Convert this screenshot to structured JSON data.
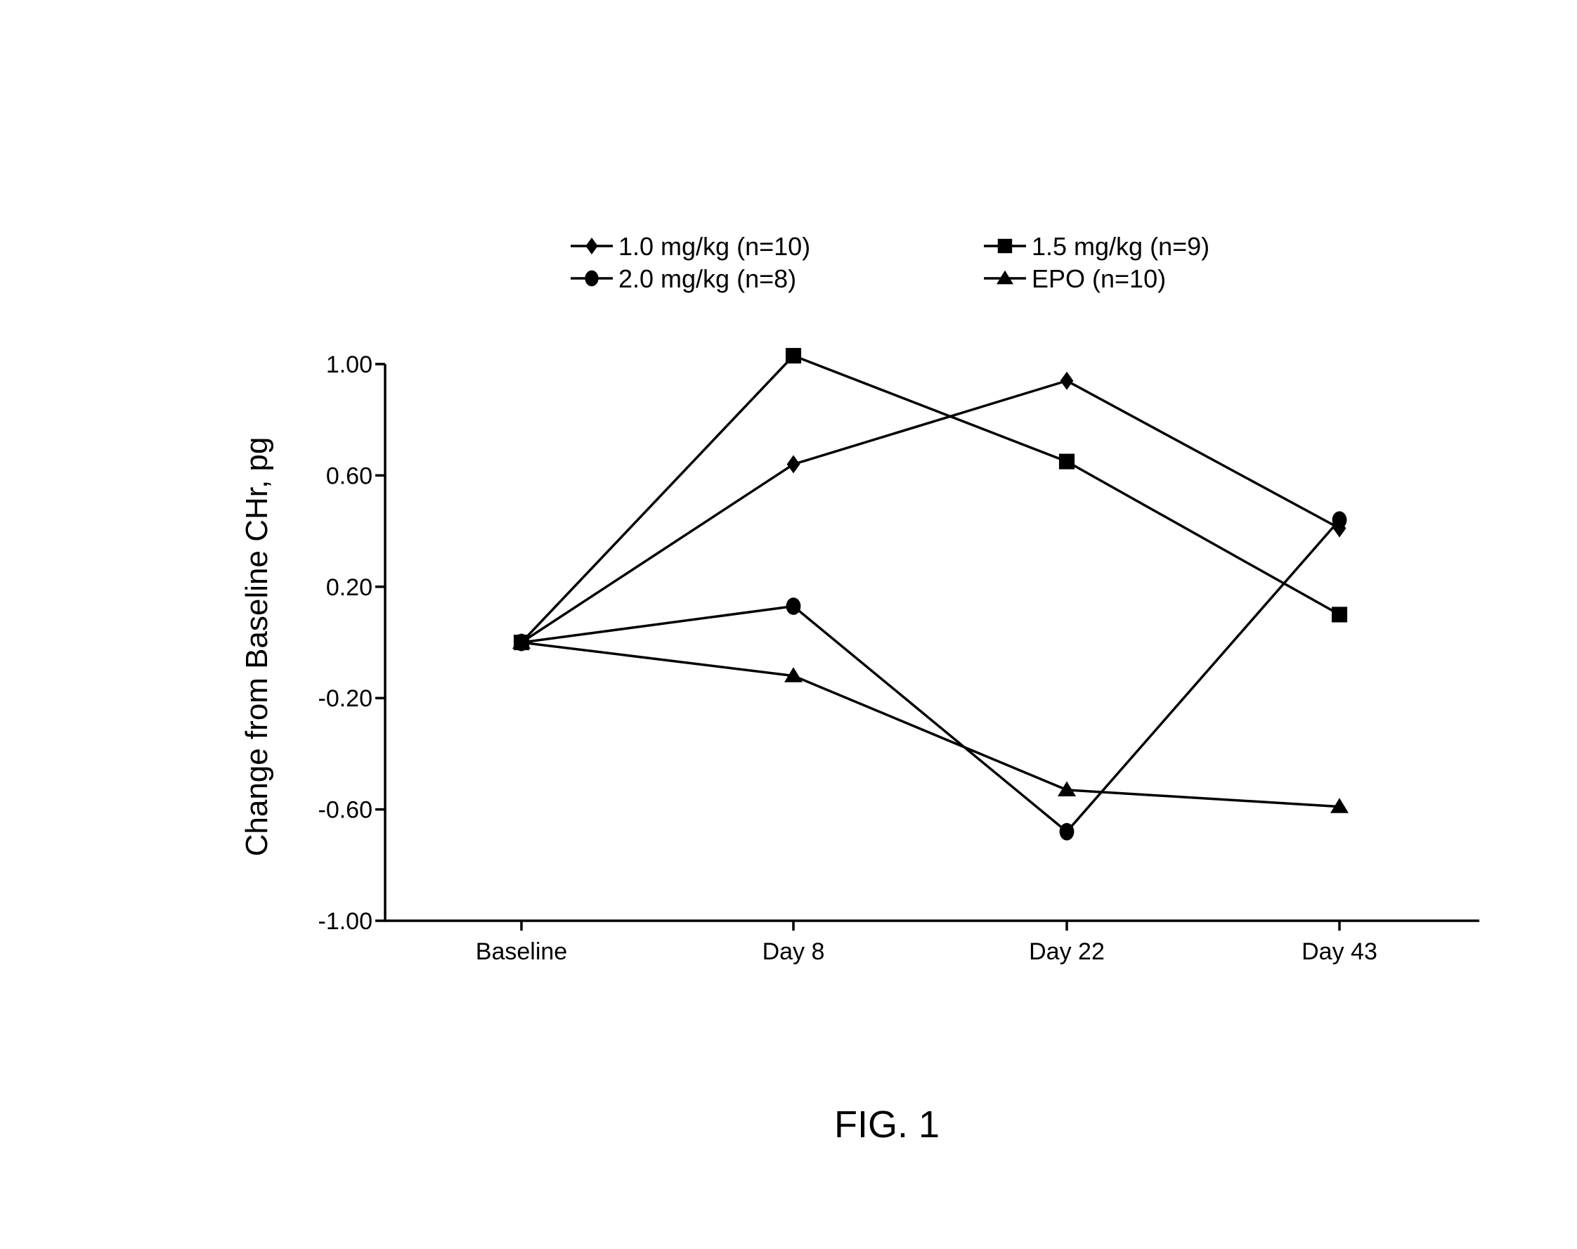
{
  "chart_data": {
    "type": "line",
    "categories": [
      "Baseline",
      "Day 8",
      "Day 22",
      "Day 43"
    ],
    "ylabel": "Change from Baseline CHr, pg",
    "xlabel": "",
    "ylim": [
      -1.0,
      1.0
    ],
    "yticks": [
      "1.00",
      "0.60",
      "0.20",
      "-0.20",
      "-0.60",
      "-1.00"
    ],
    "grid": false,
    "legend_position": "top",
    "series": [
      {
        "name": "1.0 mg/kg (n=10)",
        "marker": "diamond",
        "values": [
          0.0,
          0.64,
          0.94,
          0.41
        ]
      },
      {
        "name": "1.5 mg/kg (n=9)",
        "marker": "square",
        "values": [
          0.0,
          1.03,
          0.65,
          0.1
        ]
      },
      {
        "name": "2.0 mg/kg (n=8)",
        "marker": "circle",
        "values": [
          0.0,
          0.13,
          -0.68,
          0.44
        ]
      },
      {
        "name": "EPO (n=10)",
        "marker": "triangle",
        "values": [
          0.0,
          -0.12,
          -0.53,
          -0.59
        ]
      }
    ],
    "color": "#000000"
  },
  "caption": "FIG. 1"
}
